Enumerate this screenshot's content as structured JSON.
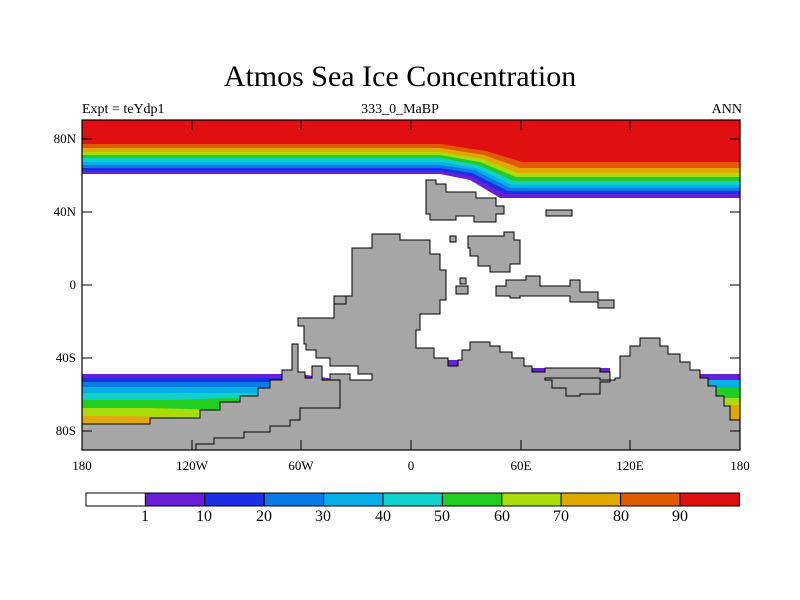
{
  "title": "Atmos Sea Ice Concentration",
  "left_label": "Expt = teYdp1",
  "center_label": "333_0_MaBP",
  "right_label": "ANN",
  "y_ticks": [
    "80N",
    "40N",
    "0",
    "40S",
    "80S"
  ],
  "x_ticks": [
    "180",
    "120W",
    "60W",
    "0",
    "60E",
    "120E",
    "180"
  ],
  "colorbar": {
    "labels": [
      "1",
      "10",
      "20",
      "30",
      "40",
      "50",
      "60",
      "70",
      "80",
      "90"
    ],
    "colors": [
      "#ffffff",
      "#6a1fd6",
      "#1a2fe6",
      "#0a7ae6",
      "#08aee6",
      "#10d0cc",
      "#22cc22",
      "#a8dc0a",
      "#e0a800",
      "#e05a00",
      "#e01010"
    ]
  },
  "land_color": "#a6a6a6"
}
